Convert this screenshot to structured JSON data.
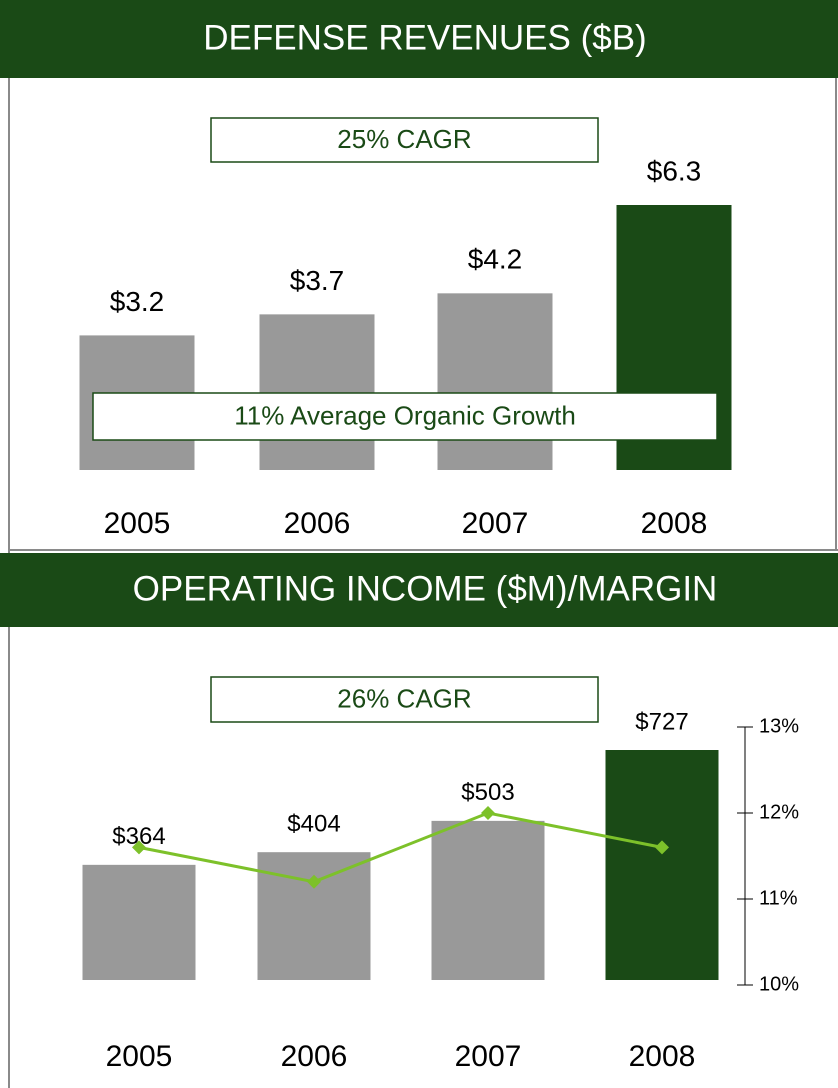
{
  "chart_data": [
    {
      "type": "bar",
      "title": "DEFENSE REVENUES ($B)",
      "categories": [
        "2005",
        "2006",
        "2007",
        "2008"
      ],
      "values": [
        3.2,
        3.7,
        4.2,
        6.3
      ],
      "value_labels": [
        "$3.2",
        "$3.7",
        "$4.2",
        "$6.3"
      ],
      "colors": [
        "#999999",
        "#999999",
        "#999999",
        "#1a4a16"
      ],
      "annotations": [
        "25% CAGR",
        "11% Average Organic Growth"
      ]
    },
    {
      "type": "bar",
      "title": "OPERATING INCOME ($M)/MARGIN",
      "categories": [
        "2005",
        "2006",
        "2007",
        "2008"
      ],
      "series": [
        {
          "type": "bar",
          "values": [
            364,
            404,
            503,
            727
          ],
          "value_labels": [
            "$364",
            "$404",
            "$503",
            "$727"
          ],
          "colors": [
            "#999999",
            "#999999",
            "#999999",
            "#1a4a16"
          ]
        },
        {
          "type": "line",
          "axis": "y2",
          "color": "#7dc12a",
          "values": [
            11.6,
            11.2,
            12.0,
            11.6
          ]
        }
      ],
      "y2lim": [
        10,
        13
      ],
      "y2ticks": [
        {
          "value": 10,
          "label": "10%"
        },
        {
          "value": 11,
          "label": "11%"
        },
        {
          "value": 12,
          "label": "12%"
        },
        {
          "value": 13,
          "label": "13%"
        }
      ],
      "annotations": [
        "26% CAGR"
      ]
    }
  ]
}
